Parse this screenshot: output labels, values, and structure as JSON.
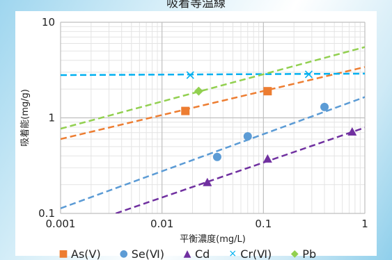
{
  "chart_data": {
    "type": "scatter",
    "title": "吸着等温線",
    "xlabel": "平衡濃度(mg/L)",
    "ylabel": "吸着能(mg/g)",
    "xscale": "log",
    "yscale": "log",
    "xlim": [
      0.001,
      1
    ],
    "ylim": [
      0.1,
      10
    ],
    "x_ticks": [
      "0.001",
      "0.01",
      "0.1",
      "1"
    ],
    "y_ticks": [
      "0.1",
      "1",
      "10"
    ],
    "grid": true,
    "legend_position": "bottom",
    "series": [
      {
        "name": "As(Ⅴ)",
        "color": "#ed7d31",
        "marker": "square",
        "points": [
          [
            0.017,
            1.18
          ],
          [
            0.11,
            1.9
          ]
        ],
        "trendline": [
          [
            0.001,
            0.6
          ],
          [
            1,
            3.4
          ]
        ]
      },
      {
        "name": "Se(Ⅵ)",
        "color": "#5b9bd5",
        "marker": "circle",
        "points": [
          [
            0.035,
            0.39
          ],
          [
            0.07,
            0.64
          ],
          [
            0.4,
            1.3
          ]
        ],
        "trendline": [
          [
            0.001,
            0.113
          ],
          [
            1,
            1.65
          ]
        ]
      },
      {
        "name": "Cd",
        "color": "#7030a0",
        "marker": "triangle",
        "points": [
          [
            0.028,
            0.21
          ],
          [
            0.11,
            0.37
          ],
          [
            0.75,
            0.71
          ]
        ],
        "trendline": [
          [
            0.0035,
            0.1
          ],
          [
            1,
            0.79
          ]
        ]
      },
      {
        "name": "Cr(Ⅵ)",
        "color": "#00b0f0",
        "marker": "x",
        "points": [
          [
            0.019,
            2.8
          ],
          [
            0.28,
            2.85
          ]
        ],
        "trendline": [
          [
            0.001,
            2.8
          ],
          [
            1,
            2.9
          ]
        ]
      },
      {
        "name": "Pb",
        "color": "#92d050",
        "marker": "diamond",
        "points": [
          [
            0.023,
            1.9
          ]
        ],
        "trendline": [
          [
            0.001,
            0.77
          ],
          [
            1,
            5.5
          ]
        ]
      }
    ]
  }
}
